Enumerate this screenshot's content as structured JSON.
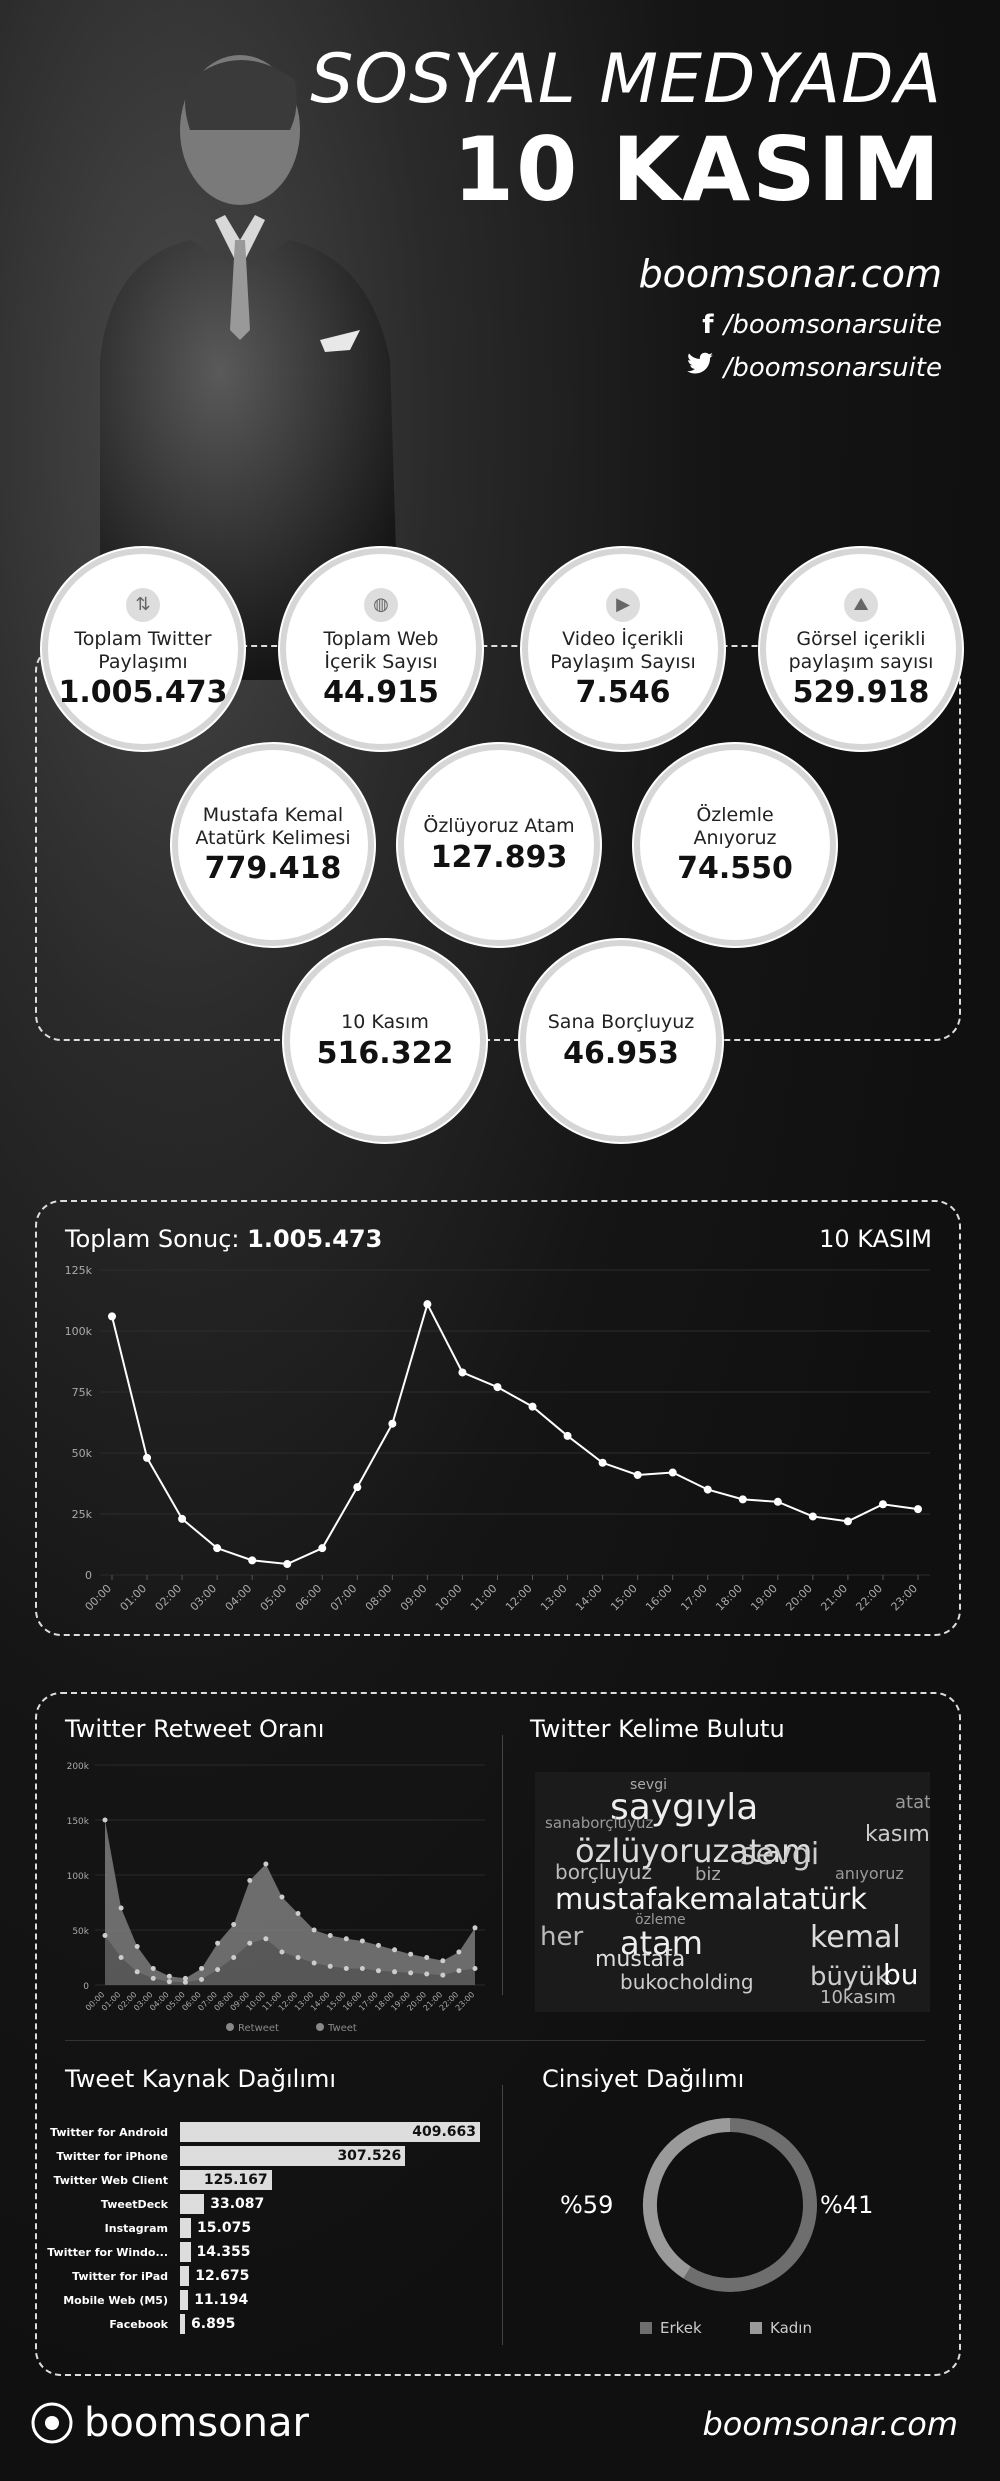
{
  "header": {
    "title_line1": "SOSYAL MEDYADA",
    "title_line2": "10 KASIM",
    "website": "boomsonar.com",
    "facebook": "/boomsonarsuite",
    "twitter": "/boomsonarsuite"
  },
  "stats": [
    {
      "icon": "retweet-icon",
      "label": "Toplam Twitter Paylaşımı",
      "value": "1.005.473"
    },
    {
      "icon": "globe-icon",
      "label": "Toplam Web İçerik Sayısı",
      "value": "44.915"
    },
    {
      "icon": "play-icon",
      "label": "Video İçerikli Paylaşım Sayısı",
      "value": "7.546"
    },
    {
      "icon": "image-icon",
      "label": "Görsel içerikli paylaşım sayısı",
      "value": "529.918"
    },
    {
      "icon": "",
      "label": "Mustafa Kemal Atatürk Kelimesi",
      "value": "779.418"
    },
    {
      "icon": "",
      "label": "Özlüyoruz Atam",
      "value": "127.893"
    },
    {
      "icon": "",
      "label": "Özlemle Anıyoruz",
      "value": "74.550"
    },
    {
      "icon": "",
      "label": "10 Kasım",
      "value": "516.322"
    },
    {
      "icon": "",
      "label": "Sana Borçluyuz",
      "value": "46.953"
    }
  ],
  "main_chart": {
    "title_prefix": "Toplam Sonuç:",
    "title_value": "1.005.473",
    "tag": "10 KASIM"
  },
  "chart_data": [
    {
      "type": "line",
      "title": "Toplam Sonuç: 1.005.473",
      "x": [
        "00:00",
        "01:00",
        "02:00",
        "03:00",
        "04:00",
        "05:00",
        "06:00",
        "07:00",
        "08:00",
        "09:00",
        "10:00",
        "11:00",
        "12:00",
        "13:00",
        "14:00",
        "15:00",
        "16:00",
        "17:00",
        "18:00",
        "19:00",
        "20:00",
        "21:00",
        "22:00",
        "23:00"
      ],
      "series": [
        {
          "values": [
            106000,
            48000,
            23000,
            11000,
            6000,
            4500,
            11000,
            36000,
            62000,
            111000,
            83000,
            77000,
            69000,
            57000,
            46000,
            41000,
            42000,
            35000,
            31000,
            30000,
            24000,
            22000,
            29000,
            27000
          ]
        }
      ],
      "yticks": [
        "0",
        "25k",
        "50k",
        "75k",
        "100k",
        "125k"
      ],
      "ylim": [
        0,
        125000
      ],
      "grid": true
    },
    {
      "type": "area",
      "title": "Twitter Retweet Oranı",
      "x": [
        "00:00",
        "01:00",
        "02:00",
        "03:00",
        "04:00",
        "05:00",
        "06:00",
        "07:00",
        "08:00",
        "09:00",
        "10:00",
        "11:00",
        "12:00",
        "13:00",
        "14:00",
        "15:00",
        "16:00",
        "17:00",
        "18:00",
        "19:00",
        "20:00",
        "21:00",
        "22:00",
        "23:00"
      ],
      "series": [
        {
          "name": "Retweet",
          "values": [
            150000,
            70000,
            35000,
            15000,
            8000,
            6000,
            15000,
            38000,
            55000,
            95000,
            110000,
            80000,
            65000,
            50000,
            45000,
            42000,
            40000,
            36000,
            32000,
            28000,
            25000,
            22000,
            30000,
            52000
          ]
        },
        {
          "name": "Tweet",
          "values": [
            45000,
            25000,
            12000,
            6000,
            3000,
            2500,
            5000,
            14000,
            25000,
            38000,
            42000,
            30000,
            25000,
            20000,
            17000,
            15000,
            15000,
            13000,
            12000,
            11000,
            10000,
            9000,
            13000,
            15000
          ]
        }
      ],
      "yticks": [
        "0",
        "50k",
        "100k",
        "150k",
        "200k"
      ],
      "ylim": [
        0,
        200000
      ]
    },
    {
      "type": "bar",
      "title": "Tweet Kaynak Dağılımı",
      "categories": [
        "Twitter for Android",
        "Twitter for iPhone",
        "Twitter Web Client",
        "TweetDeck",
        "Instagram",
        "Twitter for Windo...",
        "Twitter for iPad",
        "Mobile Web (M5)",
        "Facebook"
      ],
      "values": [
        409663,
        307526,
        125167,
        33087,
        15075,
        14355,
        12675,
        11194,
        6895
      ],
      "labels": [
        "409.663",
        "307.526",
        "125.167",
        "33.087",
        "15.075",
        "14.355",
        "12.675",
        "11.194",
        "6.895"
      ]
    },
    {
      "type": "pie",
      "title": "Cinsiyet Dağılımı",
      "categories": [
        "Erkek",
        "Kadın"
      ],
      "values": [
        59,
        41
      ],
      "labels": [
        "%59",
        "%41"
      ]
    }
  ],
  "sections": {
    "retweet_title": "Twitter Retweet Oranı",
    "wordcloud_title": "Twitter Kelime Bulutu",
    "source_title": "Tweet Kaynak Dağılımı",
    "gender_title": "Cinsiyet Dağılımı"
  },
  "wordcloud": {
    "words": [
      "saygıyla",
      "özlüyoruzatam",
      "mustafakemalatatürk",
      "sevgi",
      "atam",
      "kemal",
      "büyük",
      "bu",
      "10kasım",
      "borçluyuz",
      "atatürk",
      "kasım",
      "bukocholding",
      "sanaborçluyuz",
      "her",
      "özleme",
      "biz",
      "anıyoruz",
      "mustafa",
      "sevgi"
    ]
  },
  "footer": {
    "logo": "boomsonar",
    "website": "boomsonar.com"
  },
  "colors": {
    "background": "#111111",
    "circle_fill": "#ffffff",
    "line": "#ffffff",
    "bar": "#dddddd",
    "erkek": "#6e6e6e",
    "kadin": "#9a9a9a"
  }
}
